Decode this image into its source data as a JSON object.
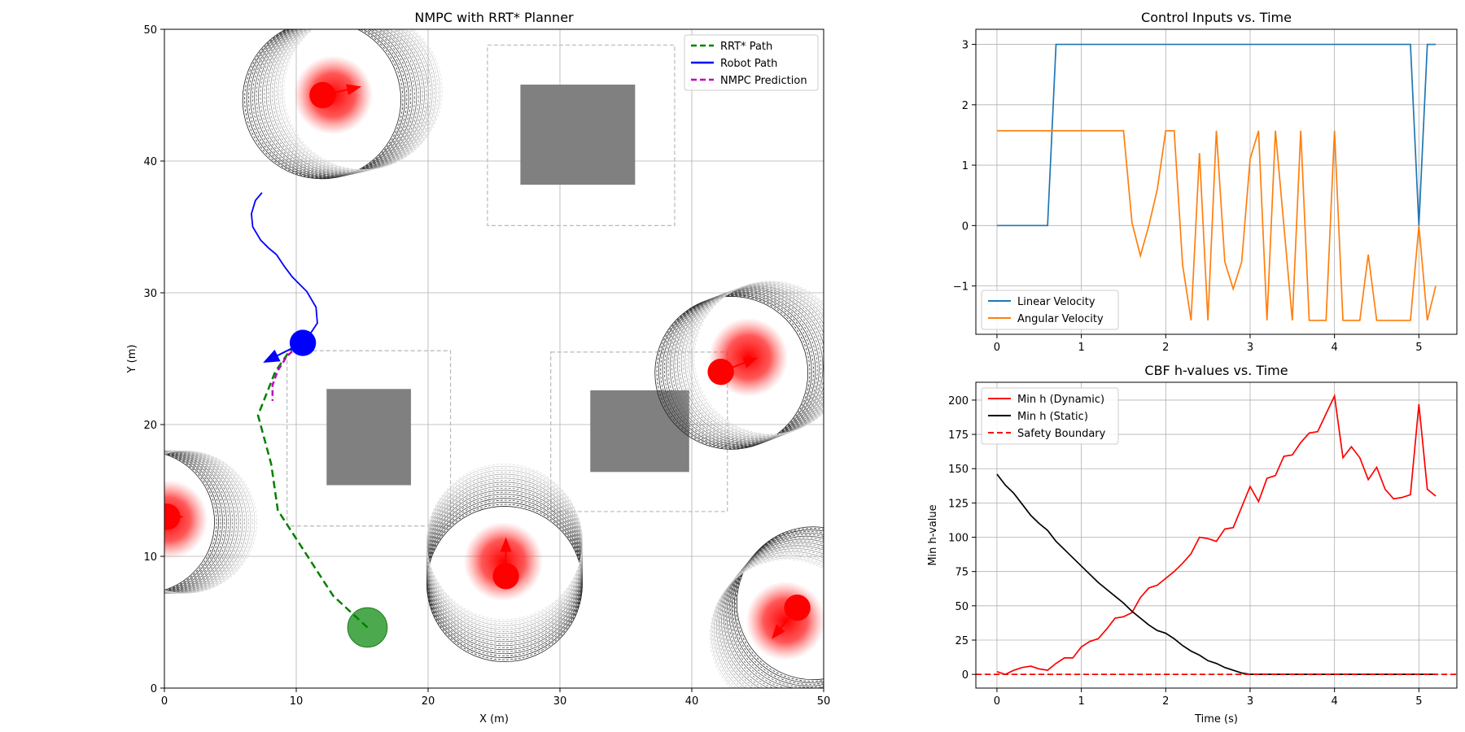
{
  "chart_data": [
    {
      "type": "scatter",
      "title": "NMPC with RRT* Planner",
      "xlabel": "X (m)",
      "ylabel": "Y (m)",
      "xlim": [
        0,
        50
      ],
      "ylim": [
        0,
        50
      ],
      "xticks": [
        0,
        10,
        20,
        30,
        40,
        50
      ],
      "yticks": [
        0,
        10,
        20,
        30,
        40,
        50
      ],
      "grid": true,
      "legend_position": "top-right",
      "legend": [
        {
          "label": "RRT* Path",
          "color": "#008000",
          "style": "dashed"
        },
        {
          "label": "Robot Path",
          "color": "#0000ff",
          "style": "solid"
        },
        {
          "label": "NMPC Prediction",
          "color": "#bf00bf",
          "style": "dashed"
        }
      ],
      "static_obstacles": [
        {
          "x": [
            27.0,
            35.7
          ],
          "y": [
            38.2,
            45.8
          ],
          "safety_x": [
            24.5,
            38.7
          ],
          "safety_y": [
            35.1,
            48.8
          ]
        },
        {
          "x": [
            12.3,
            18.7
          ],
          "y": [
            15.4,
            22.7
          ],
          "safety_x": [
            9.3,
            21.7
          ],
          "safety_y": [
            12.3,
            25.6
          ]
        },
        {
          "x": [
            32.3,
            39.8
          ],
          "y": [
            16.4,
            22.6
          ],
          "safety_x": [
            29.3,
            42.7
          ],
          "safety_y": [
            13.4,
            25.5
          ]
        }
      ],
      "dynamic_obstacles": [
        {
          "x": 12.0,
          "y": 45.0,
          "heading": [
            2.7,
            0.6
          ],
          "cone_center": [
            12.8,
            45.0
          ],
          "ring_center": [
            13.5,
            45.0
          ],
          "ring_radius": 6.0
        },
        {
          "x": 42.2,
          "y": 24.0,
          "heading": [
            2.6,
            1.0
          ],
          "cone_center": [
            44.3,
            25.1
          ],
          "ring_center": [
            44.5,
            24.5
          ],
          "ring_radius": 5.8
        },
        {
          "x": 0.2,
          "y": 13.0,
          "heading": [
            1.0,
            0.0
          ],
          "cone_center": [
            0.3,
            12.8
          ],
          "ring_center": [
            0.0,
            12.6
          ],
          "ring_radius": 5.4
        },
        {
          "x": 25.9,
          "y": 8.5,
          "heading": [
            0.0,
            2.7
          ],
          "cone_center": [
            25.7,
            9.6
          ],
          "ring_center": [
            25.8,
            9.5
          ],
          "ring_radius": 5.9
        },
        {
          "x": 48.0,
          "y": 6.1,
          "heading": [
            -1.8,
            -2.2
          ],
          "cone_center": [
            47.1,
            5.1
          ],
          "ring_center": [
            48.2,
            5.2
          ],
          "ring_radius": 5.8
        }
      ],
      "goal": {
        "x": 15.4,
        "y": 4.6,
        "radius": 1.5
      },
      "robot": {
        "x": 10.5,
        "y": 26.2,
        "radius": 1.0,
        "heading": [
          -2.8,
          -1.4
        ]
      },
      "rrt_path": [
        [
          15.4,
          4.6
        ],
        [
          12.8,
          7.0
        ],
        [
          8.6,
          13.5
        ],
        [
          8.1,
          17.0
        ],
        [
          7.1,
          20.7
        ],
        [
          8.4,
          24.0
        ],
        [
          9.5,
          25.6
        ],
        [
          10.5,
          26.2
        ]
      ],
      "robot_path": [
        [
          7.4,
          37.6
        ],
        [
          6.9,
          37.0
        ],
        [
          6.6,
          36.0
        ],
        [
          6.7,
          35.0
        ],
        [
          7.3,
          34.0
        ],
        [
          7.9,
          33.4
        ],
        [
          8.5,
          32.9
        ],
        [
          9.1,
          32.0
        ],
        [
          9.7,
          31.2
        ],
        [
          10.8,
          30.1
        ],
        [
          11.5,
          28.9
        ],
        [
          11.6,
          27.7
        ],
        [
          11.0,
          26.8
        ],
        [
          10.5,
          26.2
        ]
      ],
      "nmpc_prediction": [
        [
          10.2,
          26.0
        ],
        [
          9.3,
          25.2
        ],
        [
          8.6,
          24.1
        ],
        [
          8.2,
          23.0
        ],
        [
          8.2,
          21.8
        ]
      ]
    },
    {
      "type": "line",
      "title": "Control Inputs vs. Time",
      "xlabel": "",
      "ylabel": "",
      "xlim": [
        -0.25,
        5.45
      ],
      "ylim": [
        -1.8,
        3.25
      ],
      "xticks": [
        0,
        1,
        2,
        3,
        4,
        5
      ],
      "yticks": [
        -1,
        0,
        1,
        2,
        3
      ],
      "tick_labels_y": [
        "−1",
        "0",
        "1",
        "2",
        "3"
      ],
      "grid": true,
      "legend_position": "bottom-left",
      "series": [
        {
          "name": "Linear Velocity",
          "color": "#1f77b4",
          "x": [
            0,
            0.6,
            0.7,
            4.9,
            5.0,
            5.1,
            5.2
          ],
          "values": [
            0,
            0,
            3,
            3,
            0,
            3,
            3
          ]
        },
        {
          "name": "Angular Velocity",
          "color": "#ff7f0e",
          "x": [
            0,
            1.5,
            1.6,
            1.7,
            1.8,
            1.9,
            2.0,
            2.1,
            2.2,
            2.3,
            2.4,
            2.5,
            2.6,
            2.7,
            2.8,
            2.9,
            3.0,
            3.1,
            3.2,
            3.3,
            3.4,
            3.5,
            3.6,
            3.7,
            3.8,
            3.9,
            4.0,
            4.1,
            4.2,
            4.3,
            4.4,
            4.5,
            4.6,
            4.7,
            4.8,
            4.9,
            5.0,
            5.1,
            5.2
          ],
          "values": [
            1.57,
            1.57,
            0.05,
            -0.5,
            0.0,
            0.6,
            1.57,
            1.57,
            -0.65,
            -1.57,
            1.2,
            -1.57,
            1.57,
            -0.6,
            -1.05,
            -0.6,
            1.1,
            1.57,
            -1.57,
            1.57,
            0.0,
            -1.57,
            1.57,
            -1.57,
            -1.57,
            -1.57,
            1.57,
            -1.57,
            -1.57,
            -1.57,
            -0.48,
            -1.57,
            -1.57,
            -1.57,
            -1.57,
            -1.57,
            0.0,
            -1.57,
            -1.0
          ]
        }
      ]
    },
    {
      "type": "line",
      "title": "CBF h-values vs. Time",
      "xlabel": "Time (s)",
      "ylabel": "Min h-value",
      "xlim": [
        -0.25,
        5.45
      ],
      "ylim": [
        -10,
        213
      ],
      "xticks": [
        0,
        1,
        2,
        3,
        4,
        5
      ],
      "yticks": [
        0,
        25,
        50,
        75,
        100,
        125,
        150,
        175,
        200
      ],
      "grid": true,
      "legend_position": "top-left",
      "series": [
        {
          "name": "Min h (Dynamic)",
          "color": "#ff0000",
          "style": "solid",
          "x": [
            0,
            0.1,
            0.2,
            0.3,
            0.4,
            0.5,
            0.6,
            0.7,
            0.8,
            0.9,
            1.0,
            1.1,
            1.2,
            1.3,
            1.4,
            1.5,
            1.6,
            1.7,
            1.8,
            1.9,
            2.0,
            2.1,
            2.2,
            2.3,
            2.4,
            2.5,
            2.6,
            2.7,
            2.8,
            2.9,
            3.0,
            3.1,
            3.2,
            3.3,
            3.4,
            3.5,
            3.6,
            3.7,
            3.8,
            3.9,
            4.0,
            4.1,
            4.2,
            4.3,
            4.4,
            4.5,
            4.6,
            4.7,
            4.8,
            4.9,
            5.0,
            5.1,
            5.2
          ],
          "values": [
            2,
            0,
            3,
            5,
            6,
            4,
            3,
            8,
            12,
            12,
            20,
            24,
            26,
            33,
            41,
            42,
            45,
            56,
            63,
            65,
            70,
            75,
            81,
            88,
            100,
            99,
            97,
            106,
            107,
            122,
            137,
            126,
            143,
            145,
            159,
            160,
            169,
            176,
            177,
            190,
            203,
            158,
            166,
            158,
            142,
            151,
            135,
            128,
            129,
            131,
            197,
            135,
            130
          ]
        },
        {
          "name": "Min h (Static)",
          "color": "#000000",
          "style": "solid",
          "x": [
            0,
            0.1,
            0.2,
            0.3,
            0.4,
            0.5,
            0.6,
            0.7,
            0.8,
            0.9,
            1.0,
            1.1,
            1.2,
            1.3,
            1.4,
            1.5,
            1.6,
            1.7,
            1.8,
            1.9,
            2.0,
            2.1,
            2.2,
            2.3,
            2.4,
            2.5,
            2.6,
            2.7,
            2.8,
            2.9,
            3.0,
            3.1,
            4.0,
            5.0,
            5.2
          ],
          "values": [
            146,
            138,
            132,
            124,
            116,
            110,
            105,
            97,
            91,
            85,
            79,
            73,
            67,
            62,
            57,
            52,
            46,
            41,
            36,
            32,
            30,
            26,
            21,
            17,
            14,
            10,
            8,
            5,
            3,
            1,
            0,
            0,
            0,
            0,
            0
          ]
        },
        {
          "name": "Safety Boundary",
          "color": "#ff0000",
          "style": "dashed",
          "x": [
            -0.25,
            5.45
          ],
          "values": [
            0,
            0
          ]
        }
      ]
    }
  ]
}
